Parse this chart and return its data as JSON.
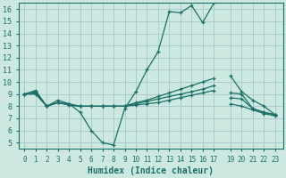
{
  "title": "",
  "xlabel": "Humidex (Indice chaleur)",
  "bg_color": "#cce8e0",
  "grid_color": "#aacccc",
  "line_color": "#1a7068",
  "spine_color": "#1a7068",
  "ylim": [
    4.5,
    16.5
  ],
  "yticks": [
    5,
    6,
    7,
    8,
    9,
    10,
    11,
    12,
    13,
    14,
    15,
    16
  ],
  "xtick_positions": [
    0,
    1,
    2,
    3,
    4,
    5,
    6,
    7,
    8,
    9,
    10,
    11,
    12,
    13,
    14,
    15,
    16,
    17,
    18.5,
    19.5,
    20.5,
    21.5,
    22.5
  ],
  "xtick_labels": [
    "0",
    "1",
    "2",
    "3",
    "4",
    "5",
    "6",
    "7",
    "8",
    "9",
    "10",
    "11",
    "12",
    "13",
    "14",
    "15",
    "16",
    "17",
    "19",
    "20",
    "21",
    "22",
    "23"
  ],
  "xlim": [
    -0.5,
    23.2
  ],
  "series": [
    {
      "x": [
        0,
        1,
        2,
        3,
        4,
        5,
        6,
        7,
        8,
        9,
        10,
        11,
        12,
        13,
        14,
        15,
        16,
        17
      ],
      "y": [
        9.0,
        9.2,
        8.0,
        8.5,
        8.2,
        7.5,
        6.0,
        5.0,
        4.8,
        7.8,
        9.2,
        11.0,
        12.5,
        15.8,
        15.7,
        16.3,
        14.9,
        16.5
      ]
    },
    {
      "x": [
        18.5,
        19.5,
        20.5,
        21.5,
        22.5
      ],
      "y": [
        10.5,
        9.2,
        8.5,
        8.0,
        7.3
      ]
    },
    {
      "x": [
        0,
        1,
        2,
        3,
        4,
        5,
        6,
        7,
        8,
        9,
        10,
        11,
        12,
        13,
        14,
        15,
        16,
        17
      ],
      "y": [
        9.0,
        9.3,
        8.0,
        8.3,
        8.2,
        8.0,
        8.0,
        8.0,
        8.0,
        8.0,
        8.3,
        8.5,
        8.8,
        9.1,
        9.4,
        9.7,
        10.0,
        10.3
      ]
    },
    {
      "x": [
        18.5,
        19.5,
        20.5,
        21.5,
        22.5
      ],
      "y": [
        9.1,
        9.0,
        7.8,
        7.5,
        7.3
      ]
    },
    {
      "x": [
        0,
        1,
        2,
        3,
        4,
        5,
        6,
        7,
        8,
        9,
        10,
        11,
        12,
        13,
        14,
        15,
        16,
        17
      ],
      "y": [
        9.0,
        9.1,
        8.0,
        8.3,
        8.1,
        8.0,
        8.0,
        8.0,
        8.0,
        8.0,
        8.2,
        8.4,
        8.6,
        8.8,
        9.0,
        9.2,
        9.4,
        9.7
      ]
    },
    {
      "x": [
        18.5,
        19.5,
        20.5,
        21.5,
        22.5
      ],
      "y": [
        8.7,
        8.6,
        7.8,
        7.5,
        7.3
      ]
    },
    {
      "x": [
        0,
        1,
        2,
        3,
        4,
        5,
        6,
        7,
        8,
        9,
        10,
        11,
        12,
        13,
        14,
        15,
        16,
        17
      ],
      "y": [
        9.0,
        9.0,
        8.0,
        8.3,
        8.1,
        8.0,
        8.0,
        8.0,
        8.0,
        8.0,
        8.1,
        8.2,
        8.3,
        8.5,
        8.7,
        8.9,
        9.1,
        9.3
      ]
    },
    {
      "x": [
        18.5,
        19.5,
        20.5,
        21.5,
        22.5
      ],
      "y": [
        8.2,
        8.0,
        7.7,
        7.4,
        7.2
      ]
    }
  ]
}
